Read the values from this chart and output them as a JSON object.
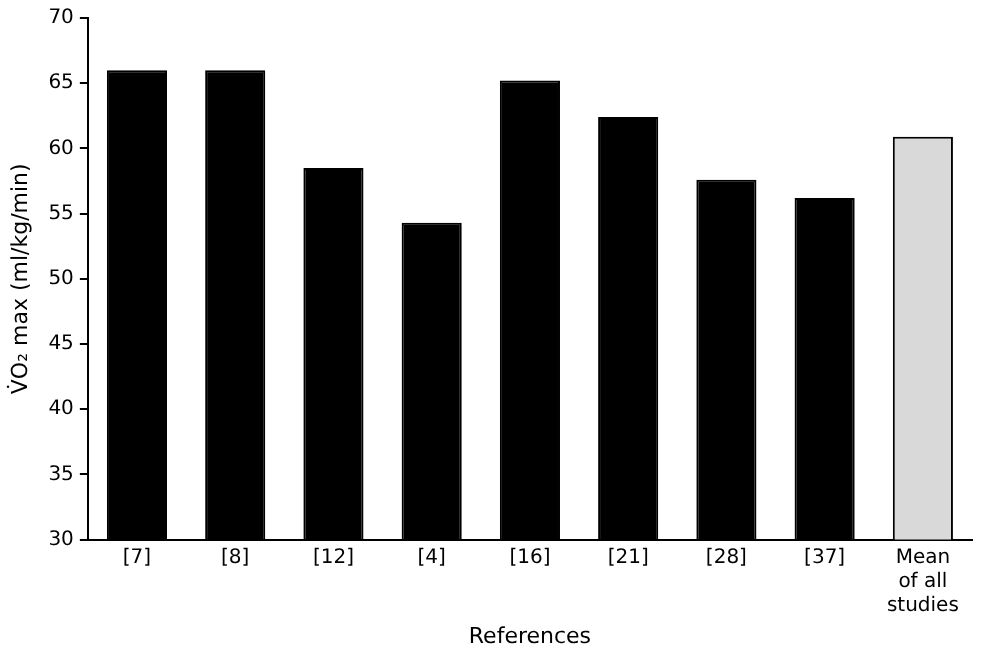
{
  "chart_data": {
    "type": "bar",
    "xlabel": "References",
    "ylabel": "V̇O₂ max (ml/kg/min)",
    "categories": [
      "[7]",
      "[8]",
      "[12]",
      "[4]",
      "[16]",
      "[21]",
      "[28]",
      "[37]",
      "Mean of all studies"
    ],
    "values": [
      66,
      66,
      58.5,
      54.3,
      65.2,
      62.4,
      57.6,
      56.2,
      60.9
    ],
    "colors": [
      "#000000",
      "#000000",
      "#000000",
      "#000000",
      "#000000",
      "#000000",
      "#000000",
      "#000000",
      "#d9d9d9"
    ],
    "ylim": [
      30,
      70
    ],
    "yticks": [
      30,
      35,
      40,
      45,
      50,
      55,
      60,
      65,
      70
    ],
    "grid": false,
    "legend": false
  }
}
